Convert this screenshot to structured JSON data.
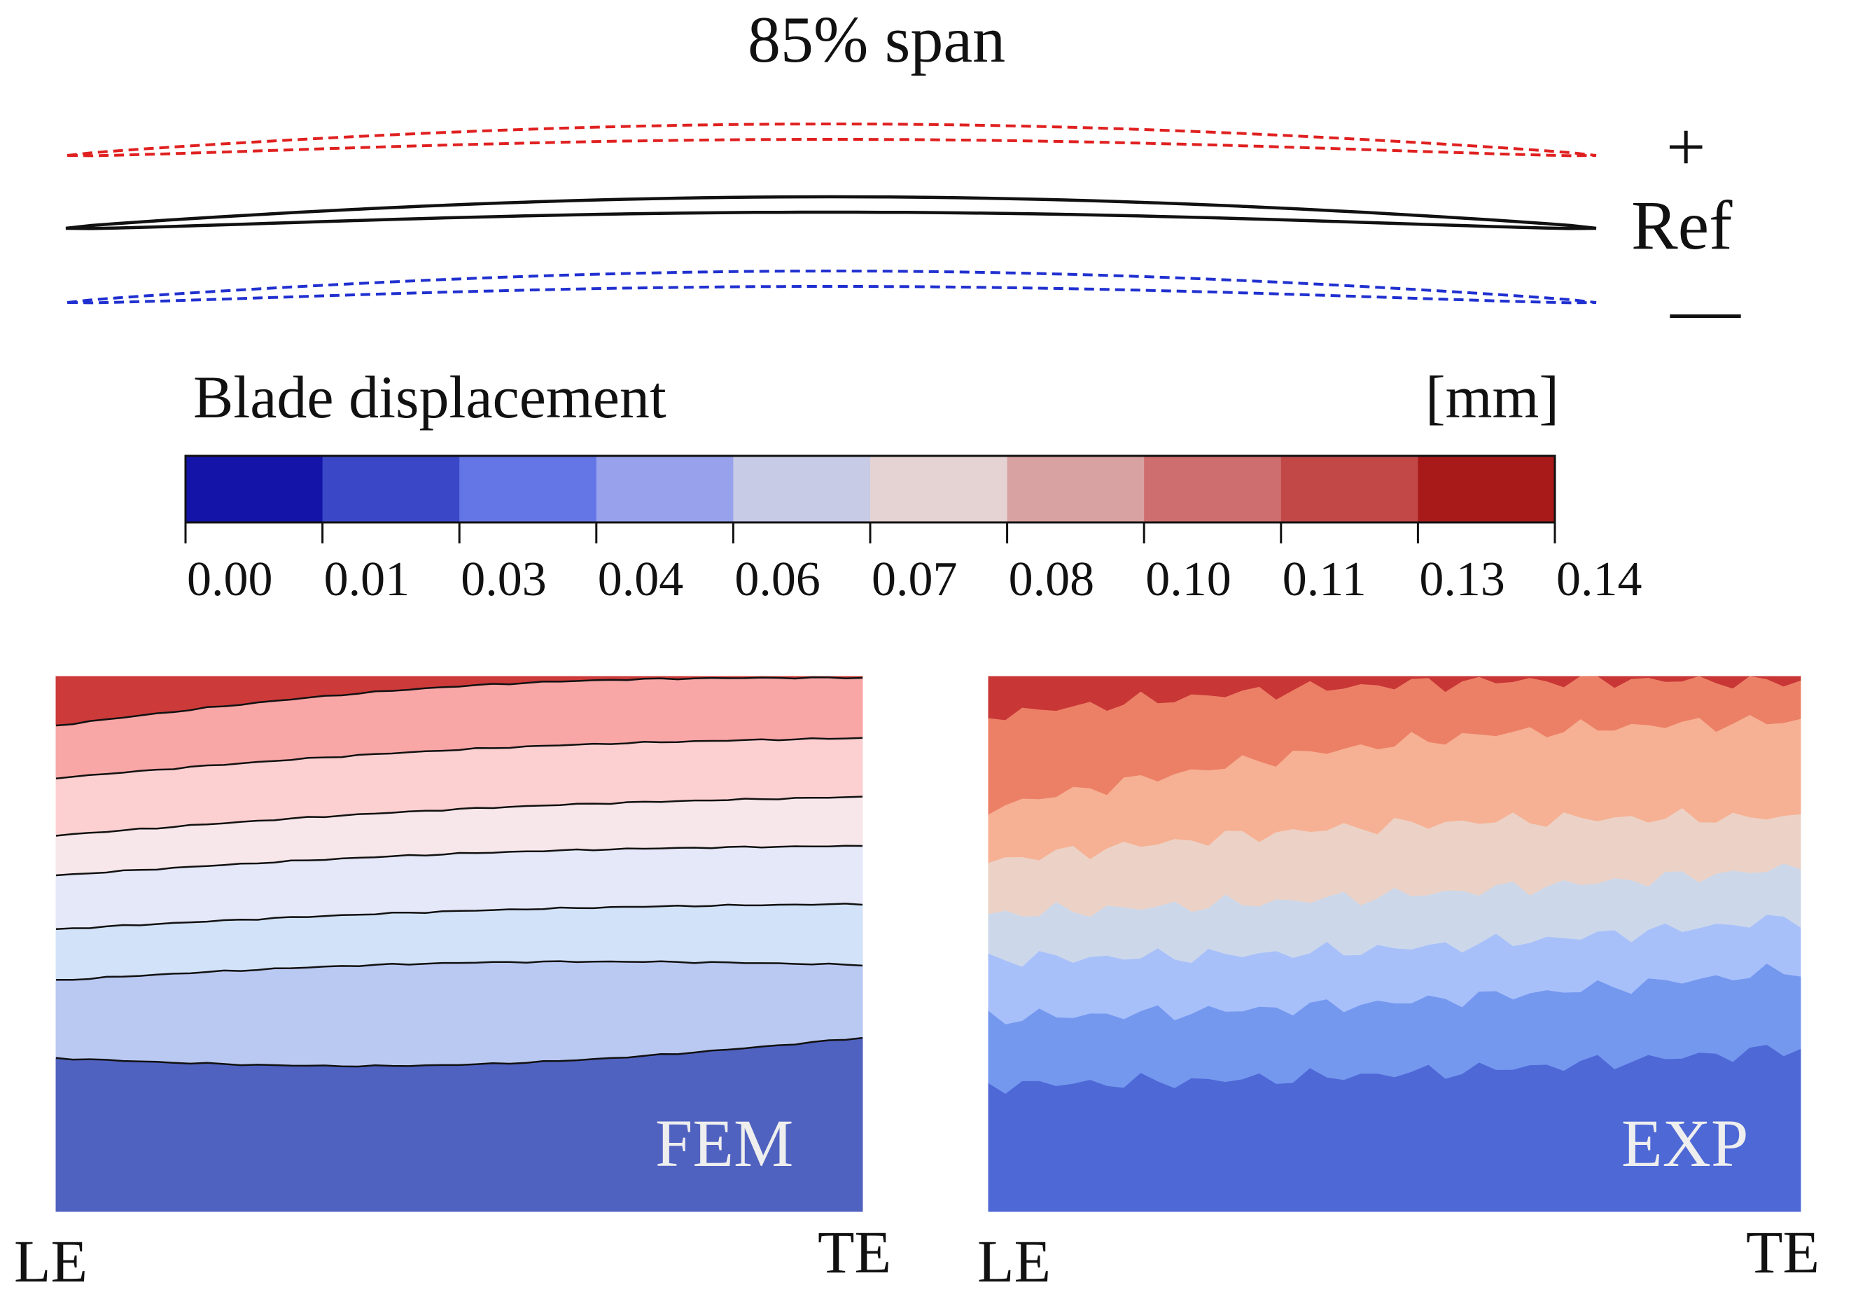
{
  "title": "85% span",
  "profiles": {
    "plus_label": "+",
    "ref_label": "Ref",
    "minus_label": "—",
    "plus_color": "#e02020",
    "ref_color": "#111111",
    "minus_color": "#2030d0"
  },
  "colorbar": {
    "title": "Blade displacement",
    "unit": "[mm]",
    "ticks": [
      "0.00",
      "0.01",
      "0.03",
      "0.04",
      "0.06",
      "0.07",
      "0.08",
      "0.10",
      "0.11",
      "0.13",
      "0.14"
    ],
    "colors": [
      "#1414a8",
      "#3a48c8",
      "#6476e6",
      "#98a2ec",
      "#c8cbe6",
      "#e5d3d3",
      "#d9a2a2",
      "#cf6e6e",
      "#c24848",
      "#a81a1a"
    ]
  },
  "panels": {
    "fem": {
      "label": "FEM",
      "le": "LE",
      "te": "TE",
      "bands": [
        "#cc3a3a",
        "#f9a6a6",
        "#fcd0d0",
        "#f7e6ea",
        "#e4e8f8",
        "#d2e2f9",
        "#bac9f2",
        "#5062c0"
      ]
    },
    "exp": {
      "label": "EXP",
      "le": "LE",
      "te": "TE",
      "bands": [
        "#c83636",
        "#ec8066",
        "#f6b194",
        "#ecd2c6",
        "#ccd8ea",
        "#a8c0fa",
        "#7598ef",
        "#4e68d6"
      ]
    }
  }
}
